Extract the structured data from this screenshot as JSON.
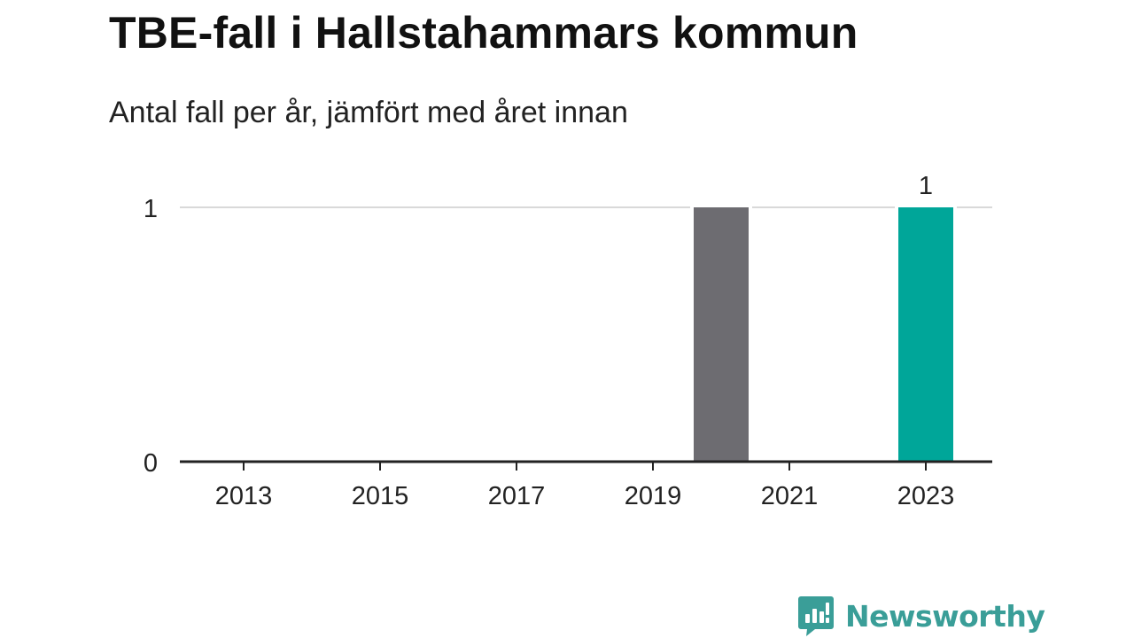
{
  "title": "TBE-fall i Hallstahammars kommun",
  "subtitle": "Antal fall per år, jämfört med året innan",
  "brand": {
    "name": "Newsworthy",
    "color": "#3a9e98",
    "icon": "bar-chart-speech-bubble-icon"
  },
  "chart_data": {
    "type": "bar",
    "categories": [
      "2013",
      "2014",
      "2015",
      "2016",
      "2017",
      "2018",
      "2019",
      "2020",
      "2021",
      "2022",
      "2023"
    ],
    "values": [
      0,
      0,
      0,
      0,
      0,
      0,
      0,
      1,
      0,
      0,
      1
    ],
    "x_tick_labels": [
      "2013",
      "2015",
      "2017",
      "2019",
      "2021",
      "2023"
    ],
    "y_ticks": [
      0,
      1
    ],
    "ylim": [
      0,
      1
    ],
    "grid": true,
    "data_labels": [
      {
        "category": "2023",
        "text": "1"
      }
    ],
    "colors": {
      "previous_year": "#6d6c71",
      "current_year": "#00a699",
      "gridline": "#d9d9d9",
      "axis": "#222222"
    },
    "highlight": {
      "category": "2023",
      "color_key": "current_year"
    },
    "comparison": {
      "category": "2020",
      "color_key": "previous_year"
    }
  }
}
